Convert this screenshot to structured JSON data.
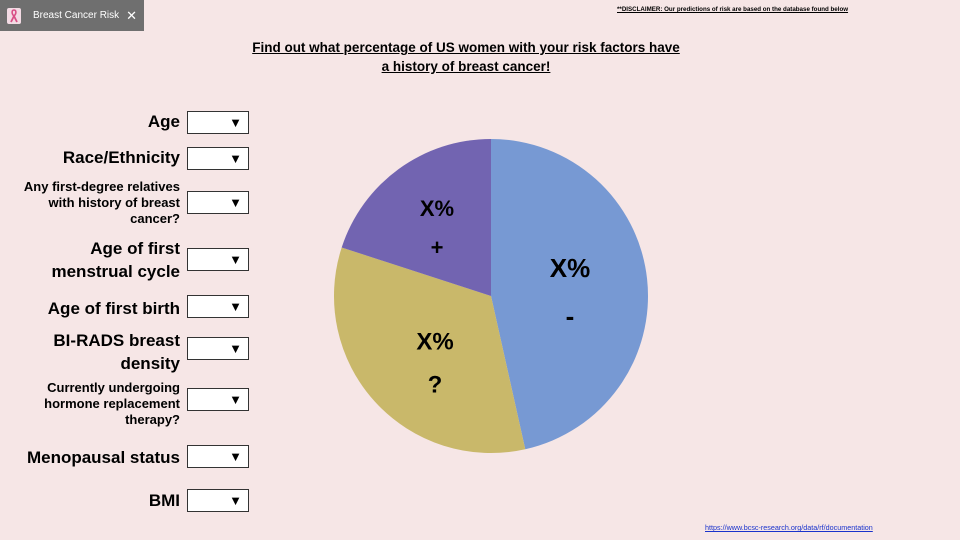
{
  "tab": {
    "title": "Breast Cancer Risk",
    "icon": "pink-ribbon-icon",
    "close_label": "✕"
  },
  "disclaimer": "**DISCLAIMER: Our predictions of risk are based on the database found below",
  "heading": {
    "line1": "Find out what percentage of US women with your risk factors have",
    "line2": "a history of breast cancer!"
  },
  "form": {
    "fields": [
      {
        "key": "age",
        "label_lines": [
          "Age"
        ],
        "value": ""
      },
      {
        "key": "race-ethnicity",
        "label_lines": [
          "Race/Ethnicity"
        ],
        "value": ""
      },
      {
        "key": "first-degree-relatives",
        "label_lines": [
          "Any first-degree relatives",
          "with history of breast",
          "cancer?"
        ],
        "value": ""
      },
      {
        "key": "age-first-menstrual-cycle",
        "label_lines": [
          "Age of first",
          "menstrual cycle"
        ],
        "value": ""
      },
      {
        "key": "age-first-birth",
        "label_lines": [
          "Age of first birth"
        ],
        "value": ""
      },
      {
        "key": "birads-density",
        "label_lines": [
          "BI-RADS breast",
          "density"
        ],
        "value": ""
      },
      {
        "key": "hormone-replacement",
        "label_lines": [
          "Currently undergoing",
          "hormone replacement",
          "therapy?"
        ],
        "value": ""
      },
      {
        "key": "menopausal-status",
        "label_lines": [
          "Menopausal status"
        ],
        "value": ""
      },
      {
        "key": "bmi",
        "label_lines": [
          "BMI"
        ],
        "value": ""
      }
    ],
    "dropdown_arrow": "▼"
  },
  "pie": {
    "slices": [
      {
        "key": "negative",
        "label": "X%",
        "sublabel": "-",
        "fraction": 0.465,
        "color": "#7799d3"
      },
      {
        "key": "unknown",
        "label": "X%",
        "sublabel": "?",
        "fraction": 0.335,
        "color": "#c9b86a"
      },
      {
        "key": "positive",
        "label": "X%",
        "sublabel": "+",
        "fraction": 0.2,
        "color": "#7264b1"
      }
    ]
  },
  "source_link": "https://www.bcsc-research.org/data/rf/documentation",
  "colors": {
    "background": "#f6e6e6",
    "tab_background": "#6f6f6f",
    "link": "#1a33cc"
  }
}
